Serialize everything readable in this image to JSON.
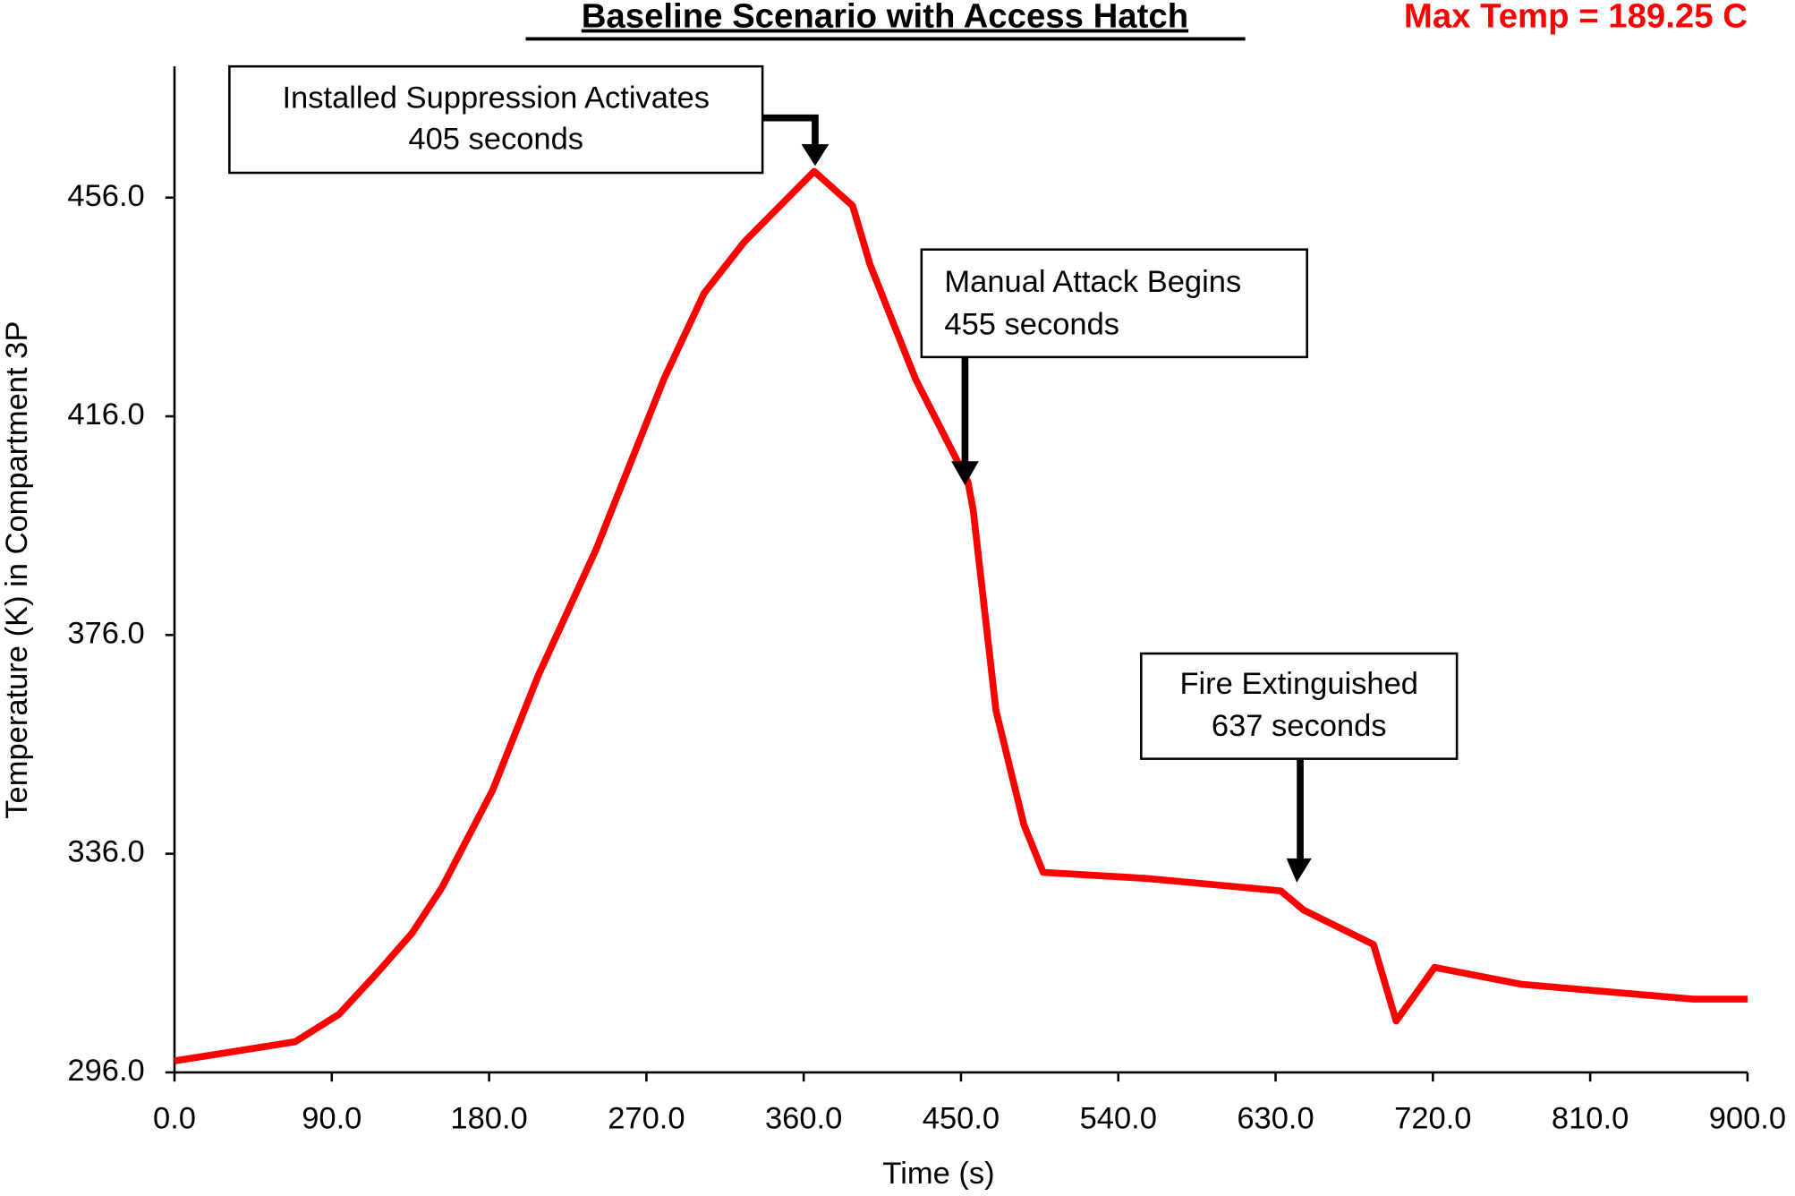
{
  "chart_data": {
    "type": "line",
    "title": "Baseline Scenario with Access Hatch",
    "max_temp_note": "Max Temp = 189.25 C",
    "x_label": "Time (s)",
    "y_label": "Temperature (K) in Compartment 3P",
    "x": [
      0,
      69,
      94,
      116,
      136,
      153,
      182,
      208,
      241,
      280,
      303,
      326,
      366,
      388,
      398,
      424,
      454,
      457,
      470,
      486,
      497,
      555,
      633,
      646,
      686,
      699,
      721,
      771,
      869,
      900
    ],
    "values": [
      298.1,
      301.6,
      306.6,
      314.2,
      321.5,
      329.8,
      347.6,
      368.5,
      391.5,
      422.8,
      438.5,
      447.9,
      460.8,
      454.5,
      443.7,
      422.8,
      404.0,
      398.8,
      362.2,
      341.3,
      332.6,
      331.5,
      329.2,
      325.7,
      319.4,
      305.4,
      315.2,
      312.1,
      309.4,
      309.4
    ],
    "color": "#ff0000",
    "xlim": [
      0,
      900
    ],
    "xticks": [
      {
        "value": 0,
        "label": "0.0"
      },
      {
        "value": 90,
        "label": "90.0"
      },
      {
        "value": 180,
        "label": "180.0"
      },
      {
        "value": 270,
        "label": "270.0"
      },
      {
        "value": 360,
        "label": "360.0"
      },
      {
        "value": 450,
        "label": "450.0"
      },
      {
        "value": 540,
        "label": "540.0"
      },
      {
        "value": 630,
        "label": "630.0"
      },
      {
        "value": 720,
        "label": "720.0"
      },
      {
        "value": 810,
        "label": "810.0"
      },
      {
        "value": 900,
        "label": "900.0"
      }
    ],
    "ylim": [
      296,
      480
    ],
    "yticks": [
      {
        "value": 296,
        "label": "296.0"
      },
      {
        "value": 336,
        "label": "336.0"
      },
      {
        "value": 376,
        "label": "376.0"
      },
      {
        "value": 416,
        "label": "416.0"
      },
      {
        "value": 456,
        "label": "456.0"
      }
    ],
    "annotations": [
      {
        "lines": [
          "Installed Suppression Activates",
          "405 seconds"
        ]
      },
      {
        "lines": [
          "Manual Attack Begins",
          "455 seconds"
        ]
      },
      {
        "lines": [
          "Fire Extinguished",
          "637 seconds"
        ]
      }
    ]
  }
}
